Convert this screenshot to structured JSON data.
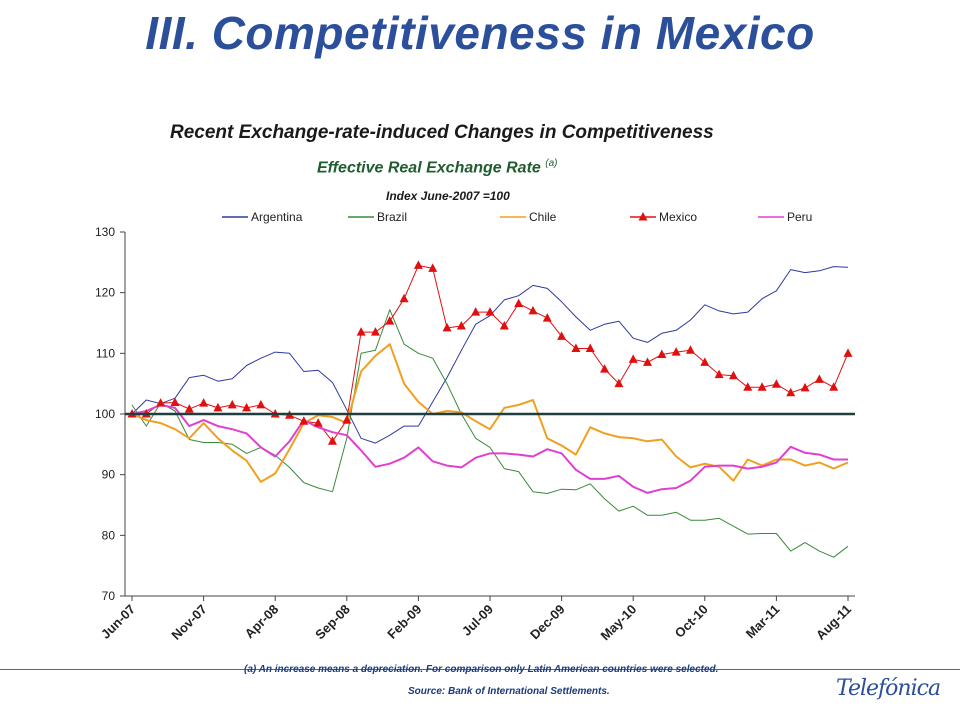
{
  "slide": {
    "title": "III. Competitiveness in Mexico",
    "chart_title": "Recent Exchange-rate-induced Changes in Competitiveness",
    "chart_subtitle": "Effective Real Exchange Rate",
    "chart_subtitle_note": "(a)",
    "chart_index_label": "Index June-2007 =100",
    "footnote": "(a) An increase means a depreciation. For comparison only Latin American countries were selected.",
    "source": "Source: Bank of International Settlements.",
    "logo_text": "Telefónica"
  },
  "colors": {
    "Argentina": "#2e3a9e",
    "Brazil": "#3a8a3a",
    "Chile": "#f0a020",
    "Mexico": "#e01010",
    "Peru": "#e040d0",
    "baseline": "#1f3f3f",
    "title": "#2b4f9a"
  },
  "chart_data": {
    "type": "line",
    "ylim": [
      70,
      130
    ],
    "yticks": [
      70,
      80,
      90,
      100,
      110,
      120,
      130
    ],
    "xtick_labels": [
      "Jun-07",
      "Nov-07",
      "Apr-08",
      "Sep-08",
      "Feb-09",
      "Jul-09",
      "Dec-09",
      "May-10",
      "Oct-10",
      "Mar-11",
      "Aug-11"
    ],
    "baseline": 100,
    "legend_position": "top",
    "series": [
      {
        "name": "Argentina",
        "values": [
          100,
          102.3,
          101.7,
          102.6,
          106.0,
          106.4,
          105.4,
          105.8,
          108.0,
          109.2,
          110.2,
          110.0,
          107.0,
          107.2,
          105.2,
          100.7,
          96.0,
          95.2,
          96.5,
          98.0,
          98.0,
          102.0,
          106.0,
          110.5,
          114.8,
          116.2,
          118.8,
          119.5,
          121.2,
          120.7,
          118.5,
          116.0,
          113.8,
          114.8,
          115.3,
          112.5,
          111.8,
          113.3,
          113.8,
          115.5,
          118.0,
          117.0,
          116.5,
          116.8,
          119.0,
          120.3,
          123.8,
          123.3,
          123.6,
          124.3,
          124.2
        ]
      },
      {
        "name": "Brazil",
        "values": [
          101.5,
          98.0,
          101.8,
          100.5,
          95.8,
          95.3,
          95.3,
          95.0,
          93.5,
          94.5,
          93.2,
          91.2,
          88.7,
          87.8,
          87.2,
          96.0,
          110.0,
          110.5,
          117.2,
          111.5,
          110.0,
          109.2,
          105.0,
          100.0,
          96.0,
          94.5,
          91.0,
          90.5,
          87.2,
          86.9,
          87.6,
          87.5,
          88.5,
          86.0,
          84.0,
          84.8,
          83.3,
          83.3,
          83.8,
          82.5,
          82.5,
          82.8,
          81.5,
          80.2,
          80.3,
          80.3,
          77.4,
          78.8,
          77.4,
          76.4,
          78.2
        ]
      },
      {
        "name": "Chile",
        "values": [
          100,
          99.0,
          98.5,
          97.5,
          96.0,
          98.5,
          96.0,
          94.0,
          92.3,
          88.8,
          90.2,
          94.2,
          98.5,
          99.8,
          99.5,
          98.5,
          107.0,
          109.6,
          111.5,
          105.0,
          102.0,
          100.0,
          100.5,
          100.3,
          98.8,
          97.5,
          101.0,
          101.5,
          102.3,
          96.0,
          94.8,
          93.3,
          97.8,
          96.8,
          96.2,
          96.0,
          95.5,
          95.8,
          93.0,
          91.2,
          91.8,
          91.3,
          89.0,
          92.5,
          91.5,
          92.5,
          92.5,
          91.5,
          92.0,
          91.0,
          92.0
        ]
      },
      {
        "name": "Mexico",
        "values": [
          100,
          100,
          101.8,
          101.9,
          100.8,
          101.8,
          101.0,
          101.5,
          101.0,
          101.5,
          100,
          99.8,
          98.8,
          98.5,
          95.5,
          99.0,
          113.5,
          113.5,
          115.3,
          119.0,
          124.5,
          124.0,
          114.2,
          114.5,
          116.8,
          116.8,
          114.5,
          118.2,
          117.0,
          115.8,
          112.8,
          110.8,
          110.8,
          107.4,
          105.0,
          109.0,
          108.5,
          109.8,
          110.2,
          110.5,
          108.5,
          106.5,
          106.3,
          104.4,
          104.4,
          104.9,
          103.5,
          104.3,
          105.7,
          104.4,
          110.0
        ]
      },
      {
        "name": "Peru",
        "values": [
          100,
          100.5,
          101.5,
          101.0,
          98.0,
          99.0,
          98.0,
          97.5,
          96.8,
          94.5,
          93.0,
          95.5,
          99.0,
          97.8,
          97.0,
          96.5,
          94.0,
          91.3,
          91.8,
          92.8,
          94.5,
          92.2,
          91.5,
          91.2,
          92.8,
          93.5,
          93.5,
          93.3,
          93.0,
          94.2,
          93.5,
          90.8,
          89.3,
          89.3,
          89.8,
          88.0,
          87.0,
          87.6,
          87.8,
          89.0,
          91.3,
          91.5,
          91.5,
          91.0,
          91.3,
          92.0,
          94.6,
          93.6,
          93.3,
          92.5,
          92.5
        ]
      }
    ]
  }
}
